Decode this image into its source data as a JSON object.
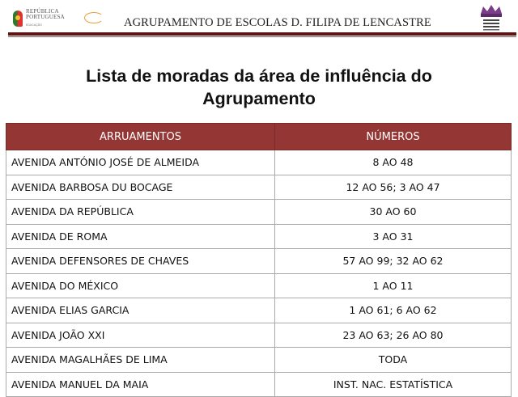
{
  "header": {
    "logo_left_text": [
      "REPÚBLICA",
      "PORTUGUESA"
    ],
    "logo_left_subtext": "EDUCAÇÃO",
    "school_name": "AGRUPAMENTO DE ESCOLAS D. FILIPA DE LENCASTRE",
    "crest_text": "AGRUPAMENTO DE ESCOLAS D. FILIPA DE LENCASTRE",
    "rule_color": "#5c1414"
  },
  "document": {
    "title_line1": "Lista de moradas da área de influência do",
    "title_line2": "Agrupamento"
  },
  "table": {
    "header_color": "#943634",
    "columns": [
      "ARRUAMENTOS",
      "NÚMEROS"
    ],
    "rows": [
      {
        "street": "AVENIDA ANTÓNIO JOSÉ DE ALMEIDA",
        "numbers": "8 AO 48"
      },
      {
        "street": "AVENIDA BARBOSA DU BOCAGE",
        "numbers": "12 AO 56; 3 AO 47"
      },
      {
        "street": "AVENIDA DA REPÚBLICA",
        "numbers": "30 AO 60"
      },
      {
        "street": "AVENIDA DE ROMA",
        "numbers": "3 AO 31"
      },
      {
        "street": "AVENIDA DEFENSORES DE CHAVES",
        "numbers": "57 AO 99; 32 AO 62"
      },
      {
        "street": "AVENIDA DO MÉXICO",
        "numbers": "1 AO 11"
      },
      {
        "street": "AVENIDA ELIAS GARCIA",
        "numbers": "1 AO 61; 6 AO 62"
      },
      {
        "street": "AVENIDA JOÃO XXI",
        "numbers": "23 AO 63; 26 AO 80"
      },
      {
        "street": "AVENIDA MAGALHÃES DE LIMA",
        "numbers": "TODA"
      },
      {
        "street": "AVENIDA MANUEL DA MAIA",
        "numbers": "INST. NAC. ESTATÍSTICA"
      }
    ]
  }
}
